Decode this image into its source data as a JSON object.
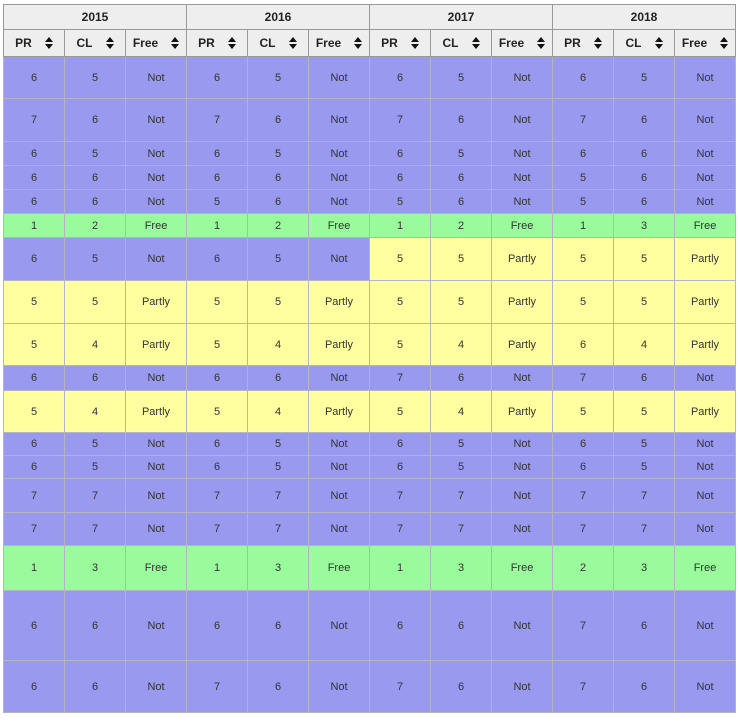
{
  "colors": {
    "not_bg": "#9999f0",
    "free_bg": "#99fb9b",
    "partly_bg": "#ffffa0",
    "header_bg": "#eeeeee",
    "header_border": "#999999"
  },
  "icons": {
    "sort": "up-down-sort-arrows-icon"
  },
  "table": {
    "year_groups": [
      {
        "year": "2015"
      },
      {
        "year": "2016"
      },
      {
        "year": "2017"
      },
      {
        "year": "2018"
      }
    ],
    "sub_columns": [
      "PR",
      "CL",
      "Free"
    ],
    "rows": [
      {
        "groups": [
          {
            "pr": "6",
            "cl": "5",
            "free": "Not",
            "status": "not"
          },
          {
            "pr": "6",
            "cl": "5",
            "free": "Not",
            "status": "not"
          },
          {
            "pr": "6",
            "cl": "5",
            "free": "Not",
            "status": "not"
          },
          {
            "pr": "6",
            "cl": "5",
            "free": "Not",
            "status": "not"
          }
        ]
      },
      {
        "groups": [
          {
            "pr": "7",
            "cl": "6",
            "free": "Not",
            "status": "not"
          },
          {
            "pr": "7",
            "cl": "6",
            "free": "Not",
            "status": "not"
          },
          {
            "pr": "7",
            "cl": "6",
            "free": "Not",
            "status": "not"
          },
          {
            "pr": "7",
            "cl": "6",
            "free": "Not",
            "status": "not"
          }
        ]
      },
      {
        "groups": [
          {
            "pr": "6",
            "cl": "5",
            "free": "Not",
            "status": "not"
          },
          {
            "pr": "6",
            "cl": "5",
            "free": "Not",
            "status": "not"
          },
          {
            "pr": "6",
            "cl": "5",
            "free": "Not",
            "status": "not"
          },
          {
            "pr": "6",
            "cl": "6",
            "free": "Not",
            "status": "not"
          }
        ]
      },
      {
        "groups": [
          {
            "pr": "6",
            "cl": "6",
            "free": "Not",
            "status": "not"
          },
          {
            "pr": "6",
            "cl": "6",
            "free": "Not",
            "status": "not"
          },
          {
            "pr": "6",
            "cl": "6",
            "free": "Not",
            "status": "not"
          },
          {
            "pr": "5",
            "cl": "6",
            "free": "Not",
            "status": "not"
          }
        ]
      },
      {
        "groups": [
          {
            "pr": "6",
            "cl": "6",
            "free": "Not",
            "status": "not"
          },
          {
            "pr": "5",
            "cl": "6",
            "free": "Not",
            "status": "not"
          },
          {
            "pr": "5",
            "cl": "6",
            "free": "Not",
            "status": "not"
          },
          {
            "pr": "5",
            "cl": "6",
            "free": "Not",
            "status": "not"
          }
        ]
      },
      {
        "groups": [
          {
            "pr": "1",
            "cl": "2",
            "free": "Free",
            "status": "free"
          },
          {
            "pr": "1",
            "cl": "2",
            "free": "Free",
            "status": "free"
          },
          {
            "pr": "1",
            "cl": "2",
            "free": "Free",
            "status": "free"
          },
          {
            "pr": "1",
            "cl": "3",
            "free": "Free",
            "status": "free"
          }
        ]
      },
      {
        "groups": [
          {
            "pr": "6",
            "cl": "5",
            "free": "Not",
            "status": "not"
          },
          {
            "pr": "6",
            "cl": "5",
            "free": "Not",
            "status": "not"
          },
          {
            "pr": "5",
            "cl": "5",
            "free": "Partly",
            "status": "partly"
          },
          {
            "pr": "5",
            "cl": "5",
            "free": "Partly",
            "status": "partly"
          }
        ]
      },
      {
        "groups": [
          {
            "pr": "5",
            "cl": "5",
            "free": "Partly",
            "status": "partly"
          },
          {
            "pr": "5",
            "cl": "5",
            "free": "Partly",
            "status": "partly"
          },
          {
            "pr": "5",
            "cl": "5",
            "free": "Partly",
            "status": "partly"
          },
          {
            "pr": "5",
            "cl": "5",
            "free": "Partly",
            "status": "partly"
          }
        ]
      },
      {
        "groups": [
          {
            "pr": "5",
            "cl": "4",
            "free": "Partly",
            "status": "partly"
          },
          {
            "pr": "5",
            "cl": "4",
            "free": "Partly",
            "status": "partly"
          },
          {
            "pr": "5",
            "cl": "4",
            "free": "Partly",
            "status": "partly"
          },
          {
            "pr": "6",
            "cl": "4",
            "free": "Partly",
            "status": "partly"
          }
        ]
      },
      {
        "groups": [
          {
            "pr": "6",
            "cl": "6",
            "free": "Not",
            "status": "not"
          },
          {
            "pr": "6",
            "cl": "6",
            "free": "Not",
            "status": "not"
          },
          {
            "pr": "7",
            "cl": "6",
            "free": "Not",
            "status": "not"
          },
          {
            "pr": "7",
            "cl": "6",
            "free": "Not",
            "status": "not"
          }
        ]
      },
      {
        "groups": [
          {
            "pr": "5",
            "cl": "4",
            "free": "Partly",
            "status": "partly"
          },
          {
            "pr": "5",
            "cl": "4",
            "free": "Partly",
            "status": "partly"
          },
          {
            "pr": "5",
            "cl": "4",
            "free": "Partly",
            "status": "partly"
          },
          {
            "pr": "5",
            "cl": "5",
            "free": "Partly",
            "status": "partly"
          }
        ]
      },
      {
        "groups": [
          {
            "pr": "6",
            "cl": "5",
            "free": "Not",
            "status": "not"
          },
          {
            "pr": "6",
            "cl": "5",
            "free": "Not",
            "status": "not"
          },
          {
            "pr": "6",
            "cl": "5",
            "free": "Not",
            "status": "not"
          },
          {
            "pr": "6",
            "cl": "5",
            "free": "Not",
            "status": "not"
          }
        ]
      },
      {
        "groups": [
          {
            "pr": "6",
            "cl": "5",
            "free": "Not",
            "status": "not"
          },
          {
            "pr": "6",
            "cl": "5",
            "free": "Not",
            "status": "not"
          },
          {
            "pr": "6",
            "cl": "5",
            "free": "Not",
            "status": "not"
          },
          {
            "pr": "6",
            "cl": "5",
            "free": "Not",
            "status": "not"
          }
        ]
      },
      {
        "groups": [
          {
            "pr": "7",
            "cl": "7",
            "free": "Not",
            "status": "not"
          },
          {
            "pr": "7",
            "cl": "7",
            "free": "Not",
            "status": "not"
          },
          {
            "pr": "7",
            "cl": "7",
            "free": "Not",
            "status": "not"
          },
          {
            "pr": "7",
            "cl": "7",
            "free": "Not",
            "status": "not"
          }
        ]
      },
      {
        "groups": [
          {
            "pr": "7",
            "cl": "7",
            "free": "Not",
            "status": "not"
          },
          {
            "pr": "7",
            "cl": "7",
            "free": "Not",
            "status": "not"
          },
          {
            "pr": "7",
            "cl": "7",
            "free": "Not",
            "status": "not"
          },
          {
            "pr": "7",
            "cl": "7",
            "free": "Not",
            "status": "not"
          }
        ]
      },
      {
        "groups": [
          {
            "pr": "1",
            "cl": "3",
            "free": "Free",
            "status": "free"
          },
          {
            "pr": "1",
            "cl": "3",
            "free": "Free",
            "status": "free"
          },
          {
            "pr": "1",
            "cl": "3",
            "free": "Free",
            "status": "free"
          },
          {
            "pr": "2",
            "cl": "3",
            "free": "Free",
            "status": "free"
          }
        ]
      },
      {
        "groups": [
          {
            "pr": "6",
            "cl": "6",
            "free": "Not",
            "status": "not"
          },
          {
            "pr": "6",
            "cl": "6",
            "free": "Not",
            "status": "not"
          },
          {
            "pr": "6",
            "cl": "6",
            "free": "Not",
            "status": "not"
          },
          {
            "pr": "7",
            "cl": "6",
            "free": "Not",
            "status": "not"
          }
        ]
      },
      {
        "groups": [
          {
            "pr": "6",
            "cl": "6",
            "free": "Not",
            "status": "not"
          },
          {
            "pr": "7",
            "cl": "6",
            "free": "Not",
            "status": "not"
          },
          {
            "pr": "7",
            "cl": "6",
            "free": "Not",
            "status": "not"
          },
          {
            "pr": "7",
            "cl": "6",
            "free": "Not",
            "status": "not"
          }
        ]
      }
    ]
  }
}
